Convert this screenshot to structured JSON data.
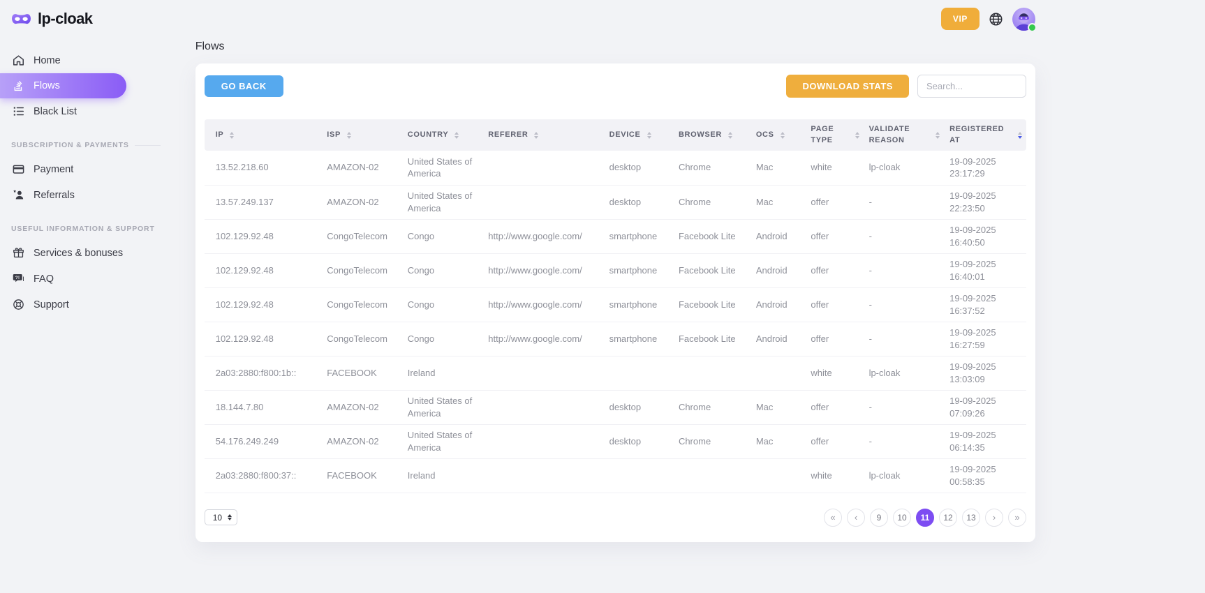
{
  "brand": {
    "name": "lp-cloak"
  },
  "topbar": {
    "vip": "VIP"
  },
  "sidebar": {
    "main": [
      {
        "label": "Home",
        "active": false
      },
      {
        "label": "Flows",
        "active": true
      },
      {
        "label": "Black List",
        "active": false
      }
    ],
    "sections": [
      {
        "title": "SUBSCRIPTION & PAYMENTS",
        "items": [
          {
            "label": "Payment"
          },
          {
            "label": "Referrals"
          }
        ]
      },
      {
        "title": "USEFUL INFORMATION & SUPPORT",
        "items": [
          {
            "label": "Services & bonuses"
          },
          {
            "label": "FAQ"
          },
          {
            "label": "Support"
          }
        ]
      }
    ]
  },
  "page": {
    "title": "Flows"
  },
  "actions": {
    "go_back": "GO BACK",
    "download_stats": "DOWNLOAD STATS",
    "search_placeholder": "Search..."
  },
  "table": {
    "columns": [
      "IP",
      "ISP",
      "COUNTRY",
      "REFERER",
      "DEVICE",
      "BROWSER",
      "OCS",
      "PAGE TYPE",
      "VALIDATE REASON",
      "REGISTERED AT"
    ],
    "sorted_by": "REGISTERED AT",
    "sort_direction": "desc",
    "rows": [
      [
        "13.52.218.60",
        "AMAZON-02",
        "United States of America",
        "",
        "desktop",
        "Chrome",
        "Mac",
        "white",
        "lp-cloak",
        "19-09-2025 23:17:29"
      ],
      [
        "13.57.249.137",
        "AMAZON-02",
        "United States of America",
        "",
        "desktop",
        "Chrome",
        "Mac",
        "offer",
        "-",
        "19-09-2025 22:23:50"
      ],
      [
        "102.129.92.48",
        "CongoTelecom",
        "Congo",
        "http://www.google.com/",
        "smartphone",
        "Facebook Lite",
        "Android",
        "offer",
        "-",
        "19-09-2025 16:40:50"
      ],
      [
        "102.129.92.48",
        "CongoTelecom",
        "Congo",
        "http://www.google.com/",
        "smartphone",
        "Facebook Lite",
        "Android",
        "offer",
        "-",
        "19-09-2025 16:40:01"
      ],
      [
        "102.129.92.48",
        "CongoTelecom",
        "Congo",
        "http://www.google.com/",
        "smartphone",
        "Facebook Lite",
        "Android",
        "offer",
        "-",
        "19-09-2025 16:37:52"
      ],
      [
        "102.129.92.48",
        "CongoTelecom",
        "Congo",
        "http://www.google.com/",
        "smartphone",
        "Facebook Lite",
        "Android",
        "offer",
        "-",
        "19-09-2025 16:27:59"
      ],
      [
        "2a03:2880:f800:1b::",
        "FACEBOOK",
        "Ireland",
        "",
        "",
        "",
        "",
        "white",
        "lp-cloak",
        "19-09-2025 13:03:09"
      ],
      [
        "18.144.7.80",
        "AMAZON-02",
        "United States of America",
        "",
        "desktop",
        "Chrome",
        "Mac",
        "offer",
        "-",
        "19-09-2025 07:09:26"
      ],
      [
        "54.176.249.249",
        "AMAZON-02",
        "United States of America",
        "",
        "desktop",
        "Chrome",
        "Mac",
        "offer",
        "-",
        "19-09-2025 06:14:35"
      ],
      [
        "2a03:2880:f800:37::",
        "FACEBOOK",
        "Ireland",
        "",
        "",
        "",
        "",
        "white",
        "lp-cloak",
        "19-09-2025 00:58:35"
      ]
    ]
  },
  "pagination": {
    "per_page": "10",
    "items": [
      "«",
      "‹",
      "9",
      "10",
      "11",
      "12",
      "13",
      "›",
      "»"
    ],
    "active_page": "11"
  },
  "colors": {
    "accent_purple": "#8a5cf6",
    "pagination_active": "#7d4df2",
    "orange": "#f0ad3a",
    "blue": "#56a9ee",
    "status_green": "#35c94e",
    "sort_active_blue": "#4b5be7"
  }
}
